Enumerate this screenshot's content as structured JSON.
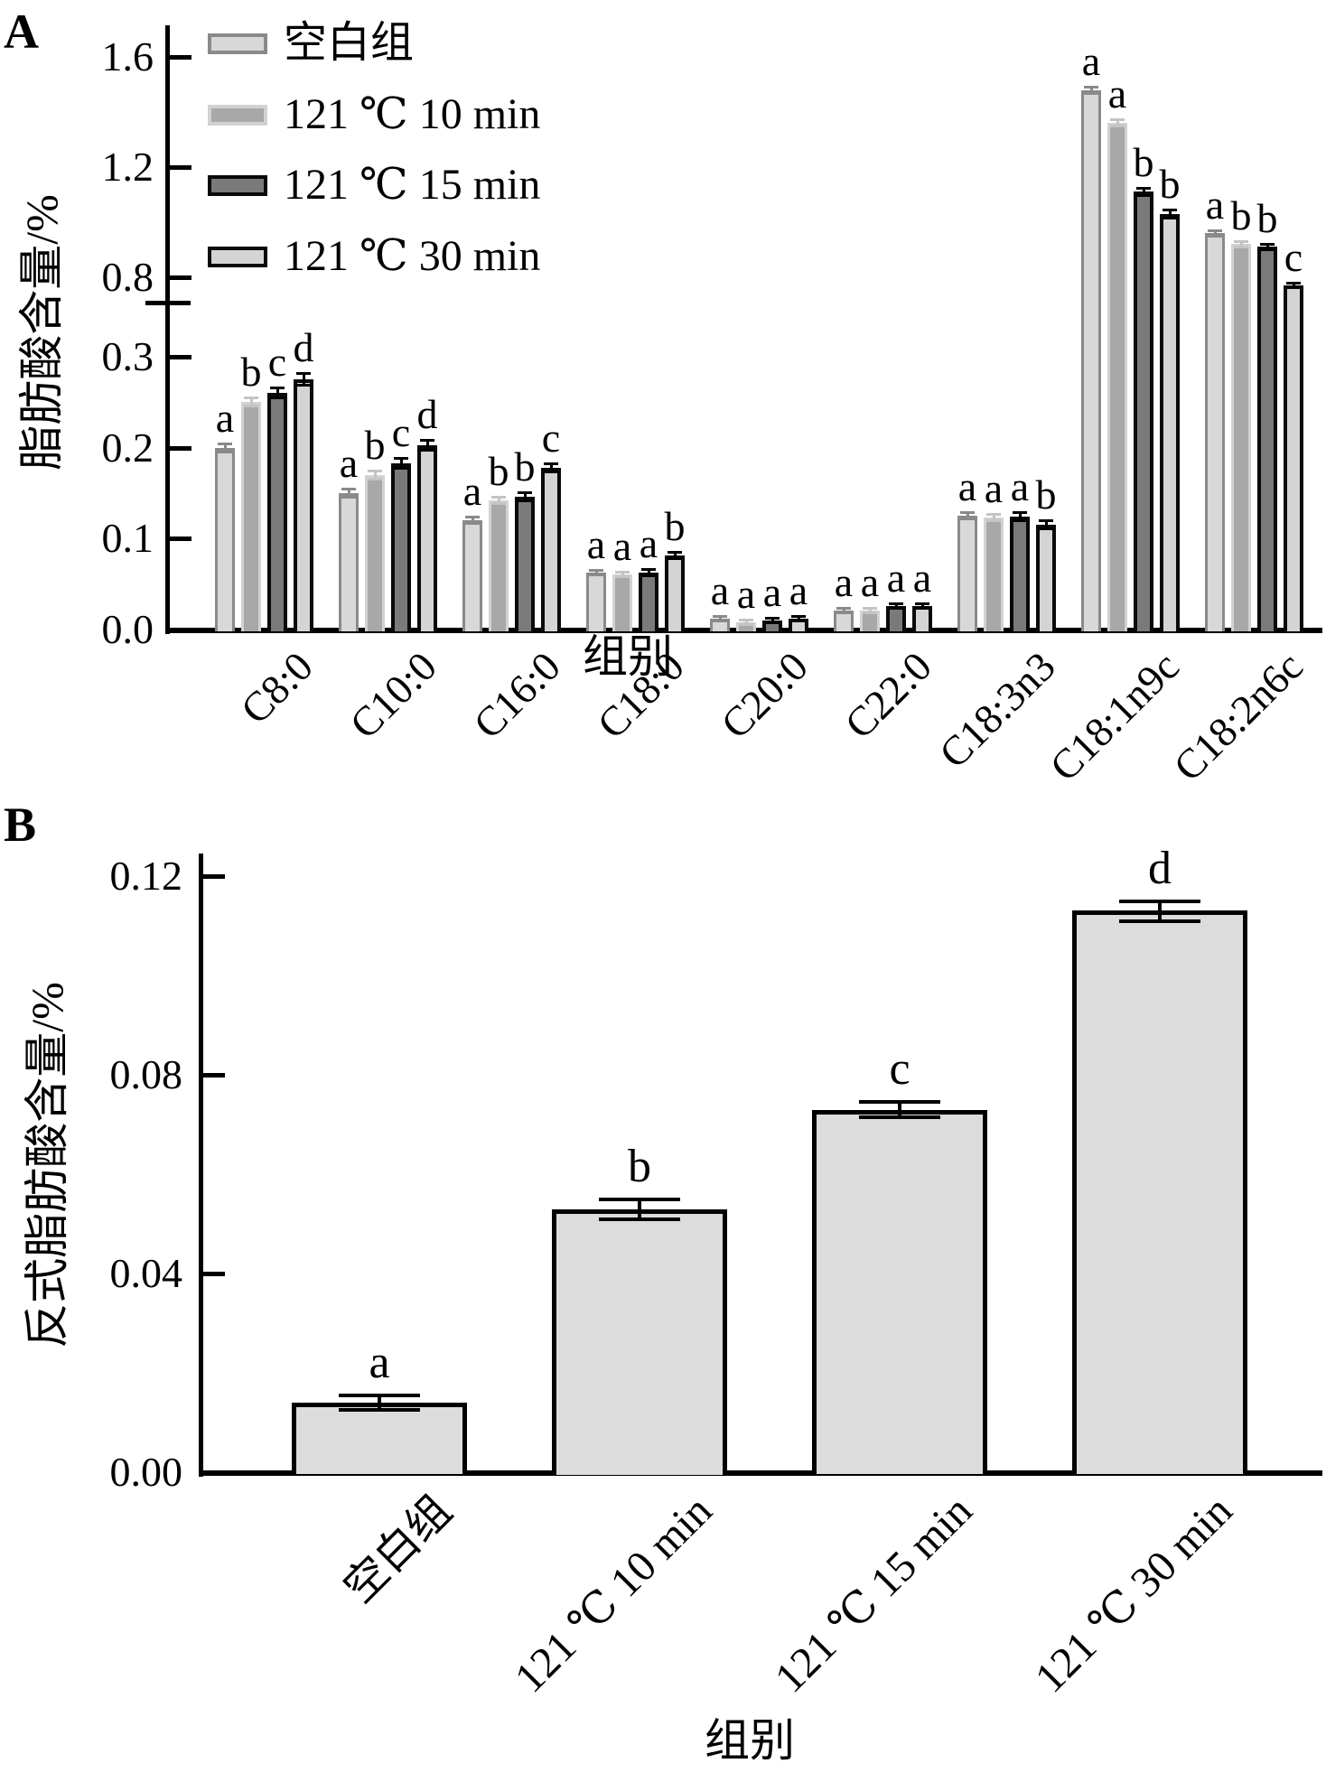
{
  "figure": {
    "background": "#ffffff",
    "panel_a_label": "A",
    "panel_b_label": "B"
  },
  "chart_data": [
    {
      "type": "bar",
      "panel_label": "A",
      "xlabel": "组别",
      "ylabel": "脂肪酸含量/%",
      "categories": [
        "C8:0",
        "C10:0",
        "C16:0",
        "C18:0",
        "C20:0",
        "C22:0",
        "C18:3n3",
        "C18:1n9c",
        "C18:2n6c"
      ],
      "series": [
        {
          "name": "空白组",
          "fill": "#d8d8d8",
          "edge": "#8a8a8a",
          "values": [
            0.2,
            0.15,
            0.12,
            0.063,
            0.012,
            0.021,
            0.125,
            1.48,
            0.96
          ],
          "errors": [
            0.004,
            0.004,
            0.003,
            0.002,
            0.002,
            0.002,
            0.003,
            0.01,
            0.008
          ]
        },
        {
          "name": "121 ℃ 10 min",
          "fill": "#a8a8a8",
          "edge": "#d2d2d2",
          "values": [
            0.25,
            0.17,
            0.142,
            0.061,
            0.008,
            0.021,
            0.123,
            1.36,
            0.92
          ],
          "errors": [
            0.004,
            0.004,
            0.003,
            0.002,
            0.002,
            0.002,
            0.003,
            0.01,
            0.008
          ]
        },
        {
          "name": "121 ℃ 15 min",
          "fill": "#7a7a7a",
          "edge": "#0a0a0a",
          "values": [
            0.26,
            0.183,
            0.146,
            0.063,
            0.01,
            0.026,
            0.124,
            1.11,
            0.91
          ],
          "errors": [
            0.005,
            0.005,
            0.004,
            0.003,
            0.002,
            0.002,
            0.004,
            0.012,
            0.009
          ]
        },
        {
          "name": "121 ℃ 30 min",
          "fill": "#d4d4d4",
          "edge": "#0a0a0a",
          "values": [
            0.275,
            0.203,
            0.178,
            0.081,
            0.012,
            0.026,
            0.115,
            1.03,
            0.75
          ],
          "errors": [
            0.006,
            0.005,
            0.004,
            0.003,
            0.002,
            0.002,
            0.004,
            0.012,
            0.009
          ]
        }
      ],
      "sig_letters": [
        [
          "a",
          "b",
          "c",
          "d"
        ],
        [
          "a",
          "b",
          "c",
          "d"
        ],
        [
          "a",
          "b",
          "b",
          "c"
        ],
        [
          "a",
          "a",
          "a",
          "b"
        ],
        [
          "a",
          "a",
          "a",
          "a"
        ],
        [
          "a",
          "a",
          "a",
          "a"
        ],
        [
          "a",
          "a",
          "a",
          "b"
        ],
        [
          "a",
          "a",
          "b",
          "b"
        ],
        [
          "a",
          "b",
          "b",
          "c"
        ]
      ],
      "y_axis": {
        "broken": true,
        "lower": {
          "ticks": [
            0.0,
            0.1,
            0.2,
            0.3
          ],
          "labels": [
            "0.0",
            "0.1",
            "0.2",
            "0.3"
          ],
          "range": [
            0,
            0.3
          ]
        },
        "upper": {
          "ticks": [
            0.8,
            1.2,
            1.6
          ],
          "labels": [
            "0.8",
            "1.2",
            "1.6"
          ],
          "range": [
            0.8,
            1.6
          ]
        }
      },
      "legend": {
        "position": "upper-left",
        "items": [
          "空白组",
          "121 ℃ 10 min",
          "121 ℃ 15 min",
          "121 ℃ 30 min"
        ]
      },
      "grid": false
    },
    {
      "type": "bar",
      "panel_label": "B",
      "xlabel": "组别",
      "ylabel": "反式脂肪酸含量/%",
      "categories": [
        "空白组",
        "121 ℃ 10 min",
        "121 ℃ 15 min",
        "121 ℃ 30 min"
      ],
      "values": [
        0.014,
        0.053,
        0.073,
        0.113
      ],
      "errors": [
        0.0015,
        0.002,
        0.0015,
        0.002
      ],
      "sig_letters": [
        "a",
        "b",
        "c",
        "d"
      ],
      "bar_fill": "#dcdcdc",
      "bar_edge": "#000000",
      "y_axis": {
        "ticks": [
          0.0,
          0.04,
          0.08,
          0.12
        ],
        "labels": [
          "0.00",
          "0.04",
          "0.08",
          "0.12"
        ],
        "range": [
          0,
          0.12
        ]
      },
      "grid": false
    }
  ]
}
